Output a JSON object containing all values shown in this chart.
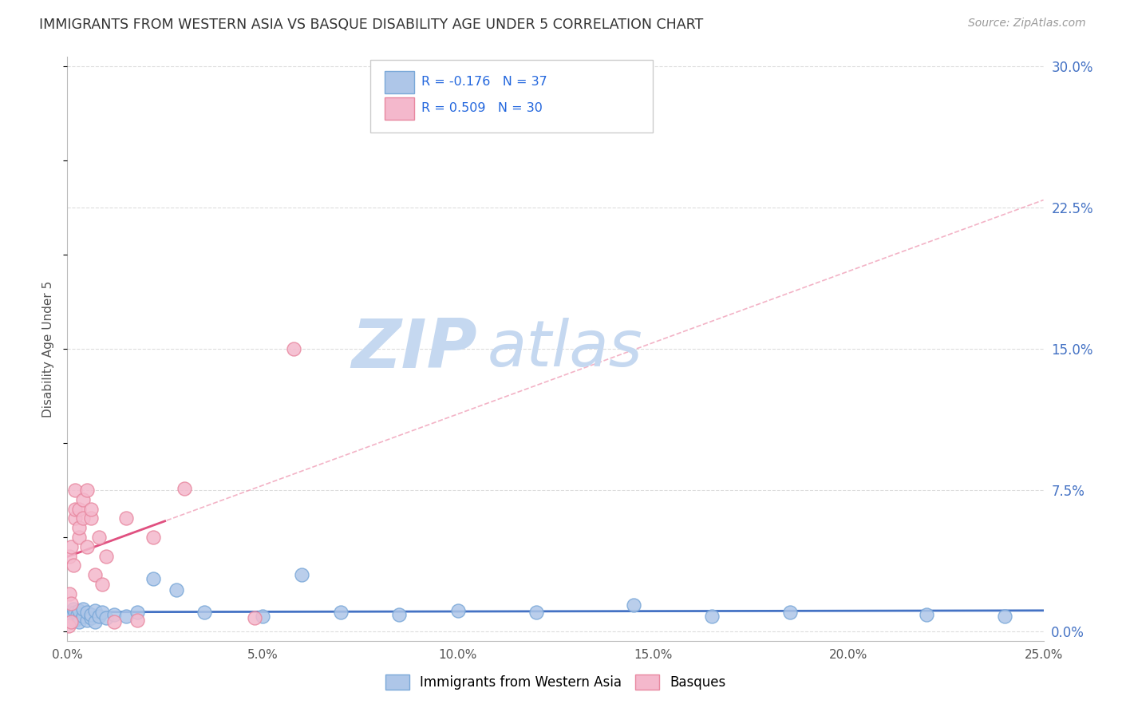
{
  "title": "IMMIGRANTS FROM WESTERN ASIA VS BASQUE DISABILITY AGE UNDER 5 CORRELATION CHART",
  "source": "Source: ZipAtlas.com",
  "xlabel_label": "Immigrants from Western Asia",
  "ylabel_label": "Disability Age Under 5",
  "legend_blue_r": "-0.176",
  "legend_blue_n": "37",
  "legend_pink_r": "0.509",
  "legend_pink_n": "30",
  "xlim": [
    0.0,
    0.25
  ],
  "ylim": [
    -0.005,
    0.305
  ],
  "xtick_vals": [
    0.0,
    0.05,
    0.1,
    0.15,
    0.2,
    0.25
  ],
  "ytick_vals": [
    0.0,
    0.075,
    0.15,
    0.225,
    0.3
  ],
  "background_color": "#ffffff",
  "grid_color": "#dddddd",
  "watermark_zip": "ZIP",
  "watermark_atlas": "atlas",
  "watermark_color_zip": "#c5d8f0",
  "watermark_color_atlas": "#c5d8f0",
  "blue_line_color": "#4472c4",
  "pink_line_color": "#e05080",
  "pink_dash_color": "#f0a0b8",
  "blue_scatter_color": "#aec6e8",
  "pink_scatter_color": "#f4b8cc",
  "blue_scatter_edge": "#7aa8d8",
  "pink_scatter_edge": "#e888a0",
  "blue_x": [
    0.0005,
    0.001,
    0.0015,
    0.002,
    0.002,
    0.0025,
    0.003,
    0.003,
    0.003,
    0.004,
    0.004,
    0.005,
    0.005,
    0.006,
    0.006,
    0.007,
    0.007,
    0.008,
    0.009,
    0.01,
    0.012,
    0.015,
    0.018,
    0.022,
    0.028,
    0.035,
    0.05,
    0.06,
    0.07,
    0.085,
    0.1,
    0.12,
    0.145,
    0.165,
    0.185,
    0.22,
    0.24
  ],
  "blue_y": [
    0.01,
    0.008,
    0.012,
    0.006,
    0.01,
    0.009,
    0.007,
    0.011,
    0.005,
    0.008,
    0.012,
    0.006,
    0.01,
    0.007,
    0.009,
    0.005,
    0.011,
    0.008,
    0.01,
    0.007,
    0.009,
    0.008,
    0.01,
    0.028,
    0.022,
    0.01,
    0.008,
    0.03,
    0.01,
    0.009,
    0.011,
    0.01,
    0.014,
    0.008,
    0.01,
    0.009,
    0.008
  ],
  "pink_x": [
    0.0003,
    0.0005,
    0.0005,
    0.001,
    0.001,
    0.001,
    0.0015,
    0.002,
    0.002,
    0.002,
    0.003,
    0.003,
    0.003,
    0.004,
    0.004,
    0.005,
    0.005,
    0.006,
    0.006,
    0.007,
    0.008,
    0.009,
    0.01,
    0.012,
    0.015,
    0.018,
    0.022,
    0.03,
    0.048,
    0.058
  ],
  "pink_y": [
    0.003,
    0.02,
    0.04,
    0.005,
    0.015,
    0.045,
    0.035,
    0.06,
    0.065,
    0.075,
    0.05,
    0.055,
    0.065,
    0.06,
    0.07,
    0.075,
    0.045,
    0.06,
    0.065,
    0.03,
    0.05,
    0.025,
    0.04,
    0.005,
    0.06,
    0.006,
    0.05,
    0.076,
    0.007,
    0.15
  ]
}
